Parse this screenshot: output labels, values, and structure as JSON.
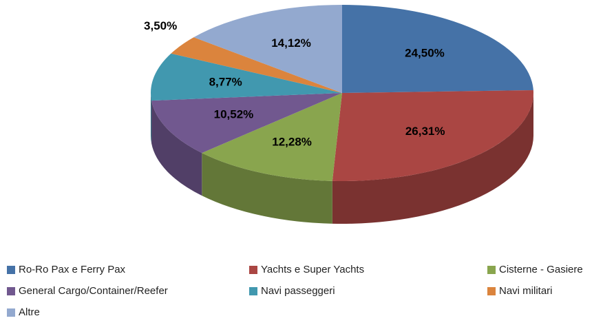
{
  "chart_data": {
    "type": "pie",
    "three_d": true,
    "legend": "bottom",
    "categories": [
      "Ro-Ro Pax e Ferry Pax",
      "Yachts e Super Yachts",
      "Cisterne - Gasiere",
      "General Cargo/Container/Reefer",
      "Navi passeggeri",
      "Navi militari",
      "Altre"
    ],
    "values": [
      24.5,
      26.31,
      12.28,
      10.52,
      8.77,
      3.5,
      14.12
    ],
    "value_labels": [
      "24,50%",
      "26,31%",
      "12,28%",
      "10,52%",
      "8,77%",
      "3,50%",
      "14,12%"
    ],
    "colors": [
      "#4572a7",
      "#aa4643",
      "#89a54e",
      "#71588f",
      "#4198af",
      "#db843d",
      "#93a9cf"
    ]
  }
}
